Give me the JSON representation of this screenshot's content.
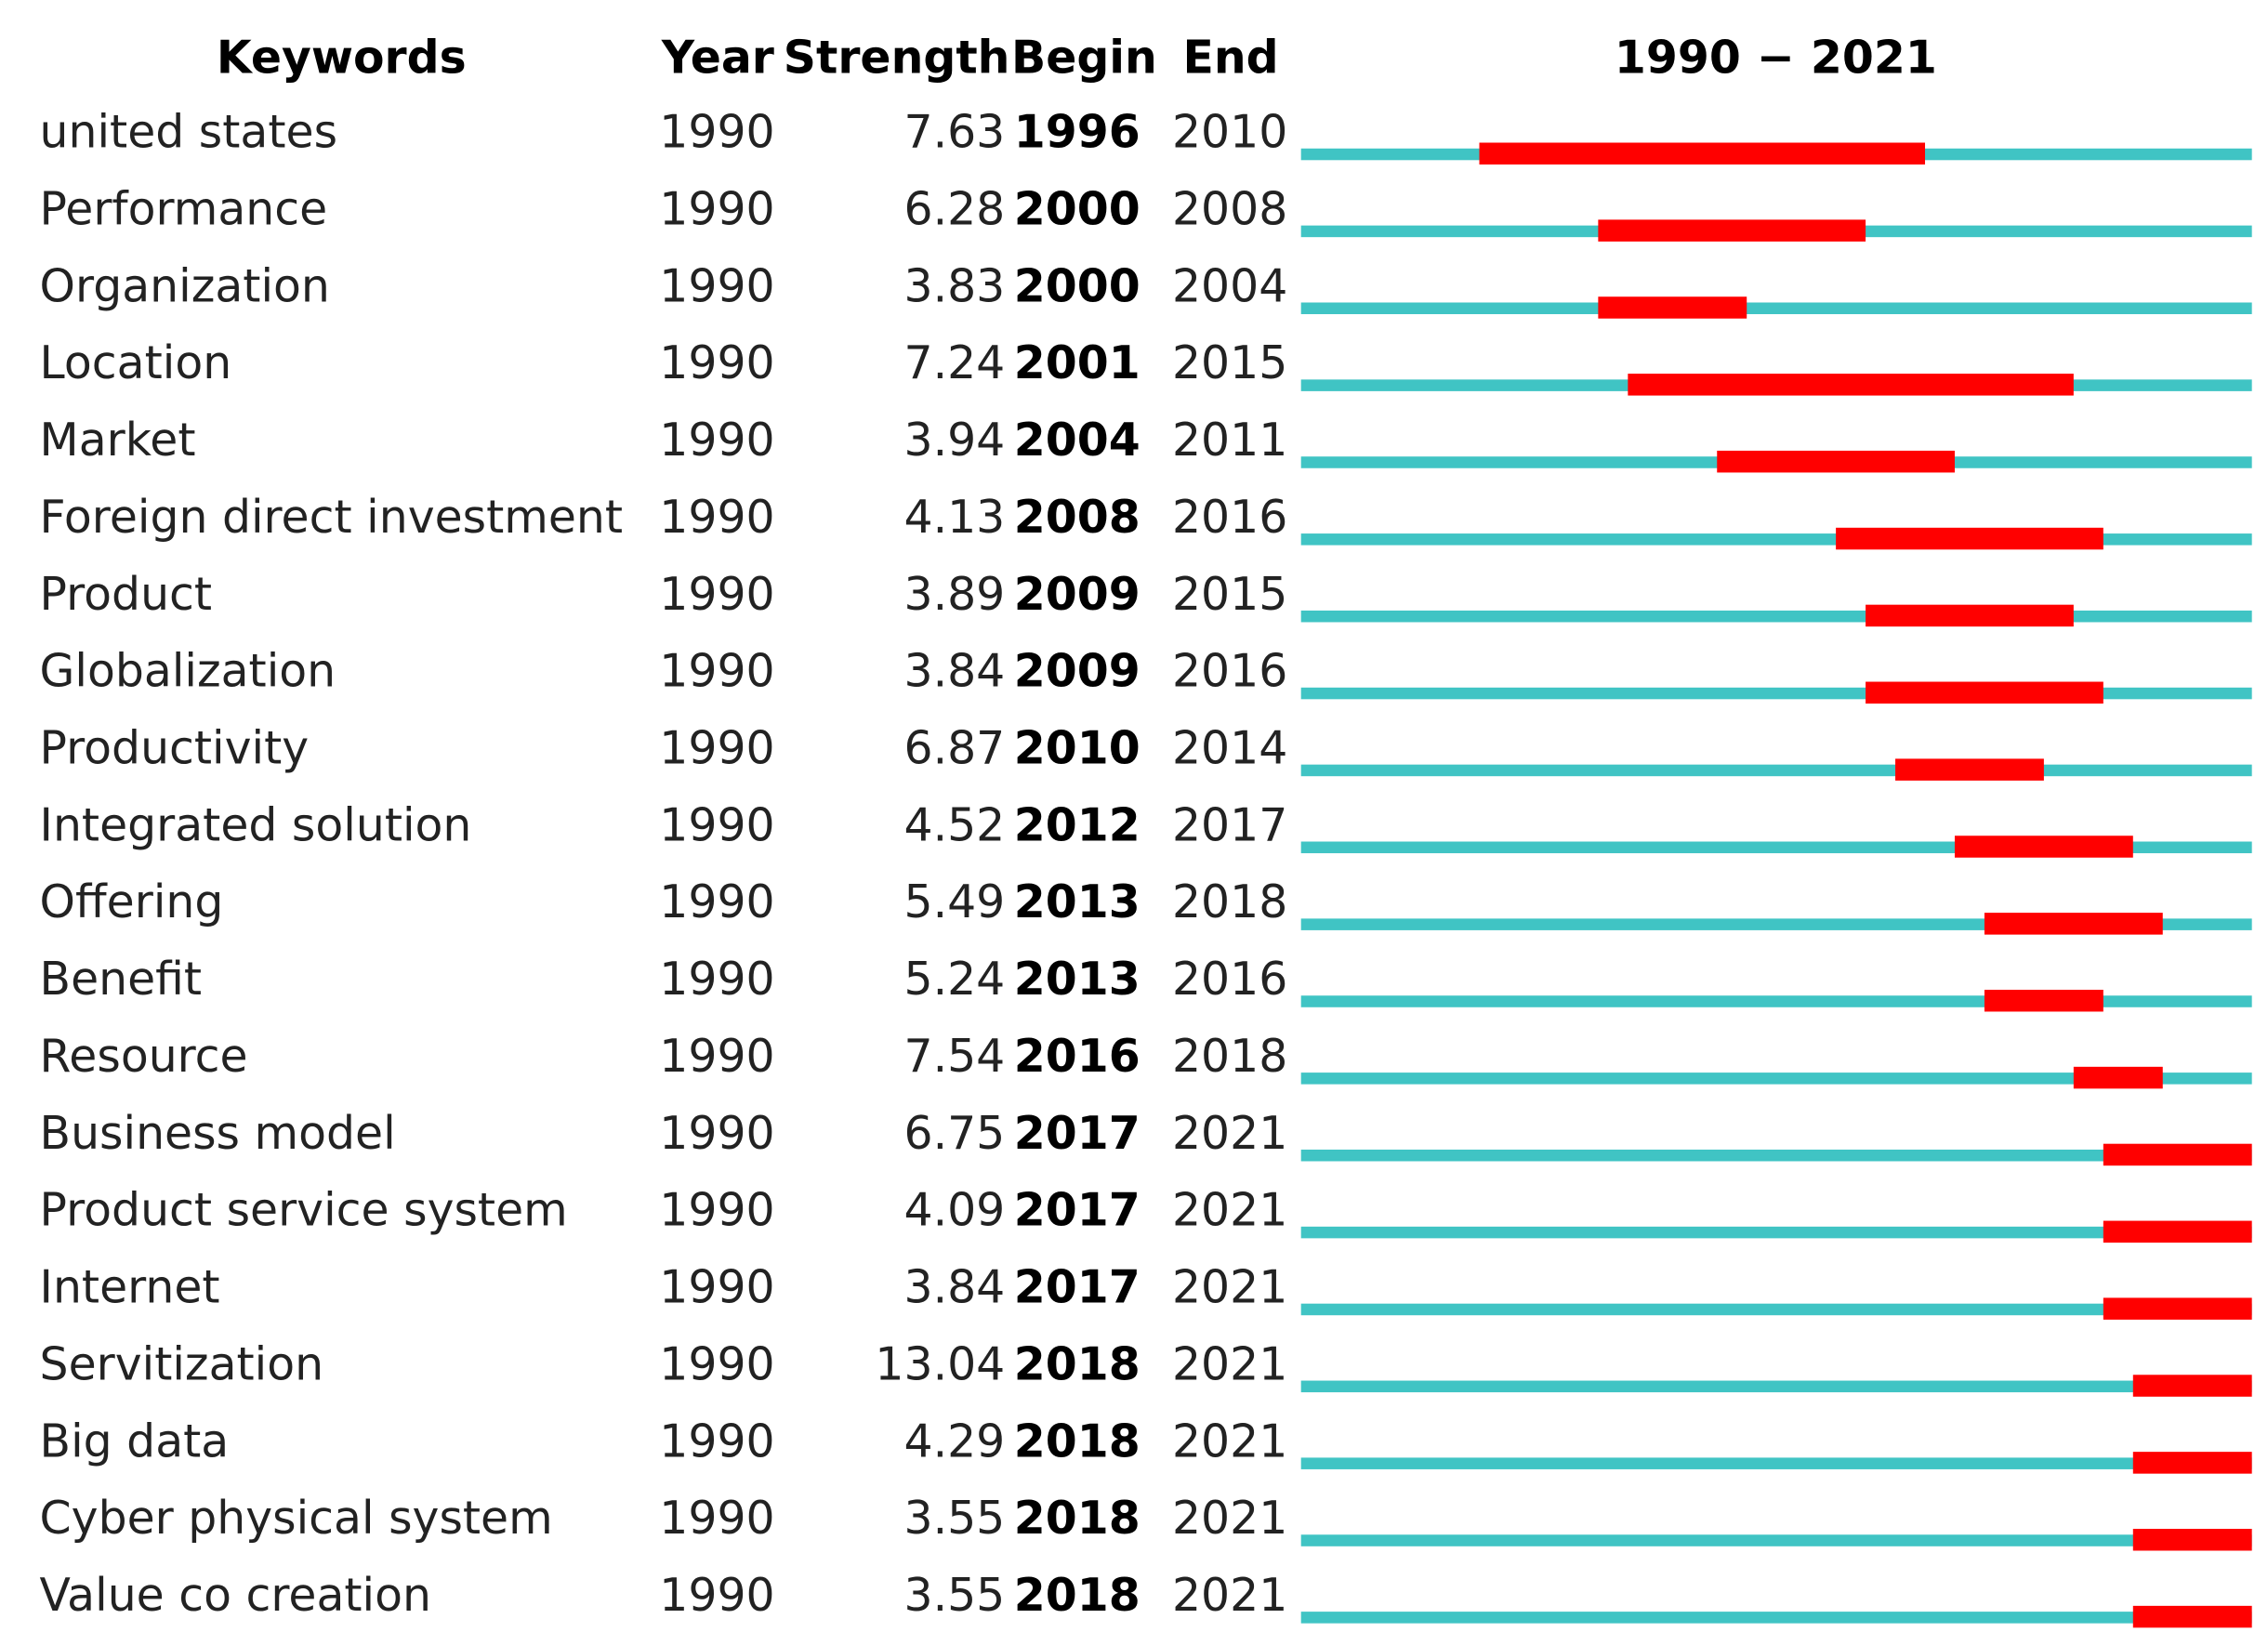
{
  "chart_data": {
    "type": "burst",
    "headers": [
      "Keywords",
      "Year",
      "Strength",
      "Begin",
      "End"
    ],
    "title": "1990 − 2021",
    "xlim": [
      1990,
      2021
    ],
    "base_color": "#40c4c4",
    "burst_color": "#ff0000",
    "rows": [
      {
        "keyword": "united states",
        "year": 1990,
        "strength": 7.63,
        "begin": 1996,
        "end": 2010
      },
      {
        "keyword": "Performance",
        "year": 1990,
        "strength": 6.28,
        "begin": 2000,
        "end": 2008
      },
      {
        "keyword": "Organization",
        "year": 1990,
        "strength": 3.83,
        "begin": 2000,
        "end": 2004
      },
      {
        "keyword": "Location",
        "year": 1990,
        "strength": 7.24,
        "begin": 2001,
        "end": 2015
      },
      {
        "keyword": "Market",
        "year": 1990,
        "strength": 3.94,
        "begin": 2004,
        "end": 2011
      },
      {
        "keyword": "Foreign direct investment",
        "year": 1990,
        "strength": 4.13,
        "begin": 2008,
        "end": 2016
      },
      {
        "keyword": "Product",
        "year": 1990,
        "strength": 3.89,
        "begin": 2009,
        "end": 2015
      },
      {
        "keyword": "Globalization",
        "year": 1990,
        "strength": 3.84,
        "begin": 2009,
        "end": 2016
      },
      {
        "keyword": "Productivity",
        "year": 1990,
        "strength": 6.87,
        "begin": 2010,
        "end": 2014
      },
      {
        "keyword": "Integrated solution",
        "year": 1990,
        "strength": 4.52,
        "begin": 2012,
        "end": 2017
      },
      {
        "keyword": "Offering",
        "year": 1990,
        "strength": 5.49,
        "begin": 2013,
        "end": 2018
      },
      {
        "keyword": "Benefit",
        "year": 1990,
        "strength": 5.24,
        "begin": 2013,
        "end": 2016
      },
      {
        "keyword": "Resource",
        "year": 1990,
        "strength": 7.54,
        "begin": 2016,
        "end": 2018
      },
      {
        "keyword": "Business model",
        "year": 1990,
        "strength": 6.75,
        "begin": 2017,
        "end": 2021
      },
      {
        "keyword": "Product service system",
        "year": 1990,
        "strength": 4.09,
        "begin": 2017,
        "end": 2021
      },
      {
        "keyword": "Internet",
        "year": 1990,
        "strength": 3.84,
        "begin": 2017,
        "end": 2021
      },
      {
        "keyword": "Servitization",
        "year": 1990,
        "strength": 13.04,
        "begin": 2018,
        "end": 2021
      },
      {
        "keyword": "Big data",
        "year": 1990,
        "strength": 4.29,
        "begin": 2018,
        "end": 2021
      },
      {
        "keyword": "Cyber physical system",
        "year": 1990,
        "strength": 3.55,
        "begin": 2018,
        "end": 2021
      },
      {
        "keyword": "Value co creation",
        "year": 1990,
        "strength": 3.55,
        "begin": 2018,
        "end": 2021
      }
    ]
  }
}
